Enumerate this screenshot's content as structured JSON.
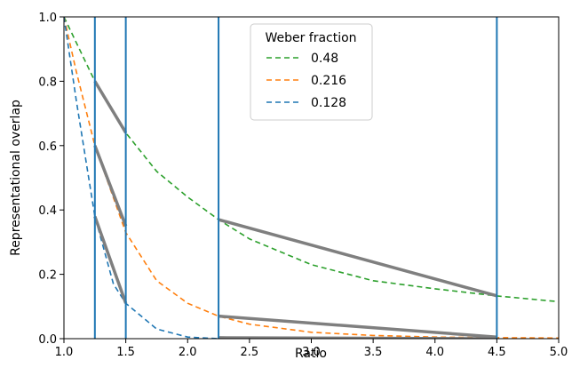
{
  "chart_data": {
    "type": "line",
    "xlabel": "Ratio",
    "ylabel": "Representational overlap",
    "xlim": [
      1.0,
      5.0
    ],
    "ylim": [
      0.0,
      1.0
    ],
    "xticks": [
      "1.0",
      "1.5",
      "2.0",
      "2.5",
      "3.0",
      "3.5",
      "4.0",
      "4.5",
      "5.0"
    ],
    "yticks": [
      "0.0",
      "0.2",
      "0.4",
      "0.6",
      "0.8",
      "1.0"
    ],
    "legend": {
      "title": "Weber fraction",
      "placement": "top-center"
    },
    "series": [
      {
        "name": "0.48",
        "color": "#2ca02c",
        "style": "dashed",
        "x": [
          1.0,
          1.25,
          1.5,
          1.75,
          2.0,
          2.25,
          2.5,
          3.0,
          3.5,
          4.0,
          4.5,
          5.0
        ],
        "y": [
          1.0,
          0.8,
          0.64,
          0.52,
          0.44,
          0.37,
          0.31,
          0.23,
          0.18,
          0.155,
          0.133,
          0.115
        ]
      },
      {
        "name": "0.216",
        "color": "#ff7f0e",
        "style": "dashed",
        "x": [
          1.0,
          1.1,
          1.25,
          1.5,
          1.75,
          2.0,
          2.25,
          2.5,
          3.0,
          3.5,
          4.0,
          4.5,
          5.0
        ],
        "y": [
          1.0,
          0.83,
          0.6,
          0.33,
          0.18,
          0.11,
          0.07,
          0.045,
          0.02,
          0.01,
          0.005,
          0.003,
          0.002
        ]
      },
      {
        "name": "0.128",
        "color": "#1f77b4",
        "style": "dashed",
        "x": [
          1.0,
          1.1,
          1.25,
          1.4,
          1.5,
          1.75,
          2.0,
          2.25,
          2.5
        ],
        "y": [
          1.0,
          0.74,
          0.38,
          0.17,
          0.11,
          0.03,
          0.005,
          0.0,
          0.0
        ]
      }
    ],
    "vlines": {
      "color": "#1f77b4",
      "x": [
        1.25,
        1.5,
        2.25,
        4.5
      ]
    },
    "connectors": {
      "color": "#7f7f7f",
      "lines": [
        {
          "x": [
            1.25,
            1.5
          ],
          "y": [
            0.8,
            0.64
          ]
        },
        {
          "x": [
            1.25,
            1.5
          ],
          "y": [
            0.6,
            0.35
          ]
        },
        {
          "x": [
            1.25,
            1.5
          ],
          "y": [
            0.38,
            0.11
          ]
        },
        {
          "x": [
            2.25,
            4.5
          ],
          "y": [
            0.37,
            0.133
          ]
        },
        {
          "x": [
            2.25,
            4.5
          ],
          "y": [
            0.07,
            0.005
          ]
        },
        {
          "x": [
            2.25,
            4.5
          ],
          "y": [
            0.003,
            0.0
          ]
        }
      ]
    }
  }
}
